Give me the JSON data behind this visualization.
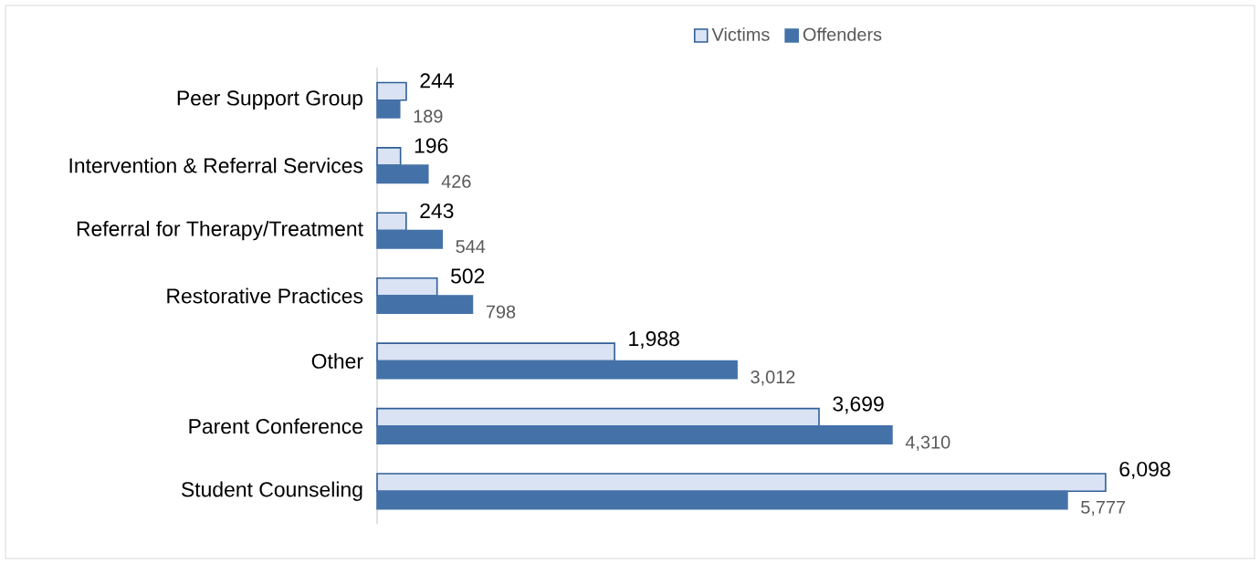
{
  "chart_data": {
    "type": "bar",
    "orientation": "horizontal",
    "legend": "top",
    "categories": [
      "Peer Support Group",
      "Intervention & Referral Services",
      "Referral for Therapy/Treatment",
      "Restorative Practices",
      "Other",
      "Parent Conference",
      "Student Counseling"
    ],
    "series": [
      {
        "name": "Victims",
        "color": "#dae3f3",
        "values": [
          244,
          196,
          243,
          502,
          1988,
          3699,
          6098
        ],
        "value_labels": [
          "244",
          "196",
          "243",
          "502",
          "1,988",
          "3,699",
          "6,098"
        ]
      },
      {
        "name": "Offenders",
        "color": "#4472a8",
        "values": [
          189,
          426,
          544,
          798,
          3012,
          4310,
          5777
        ],
        "value_labels": [
          "189",
          "426",
          "544",
          "798",
          "3,012",
          "4,310",
          "5,777"
        ]
      }
    ]
  }
}
